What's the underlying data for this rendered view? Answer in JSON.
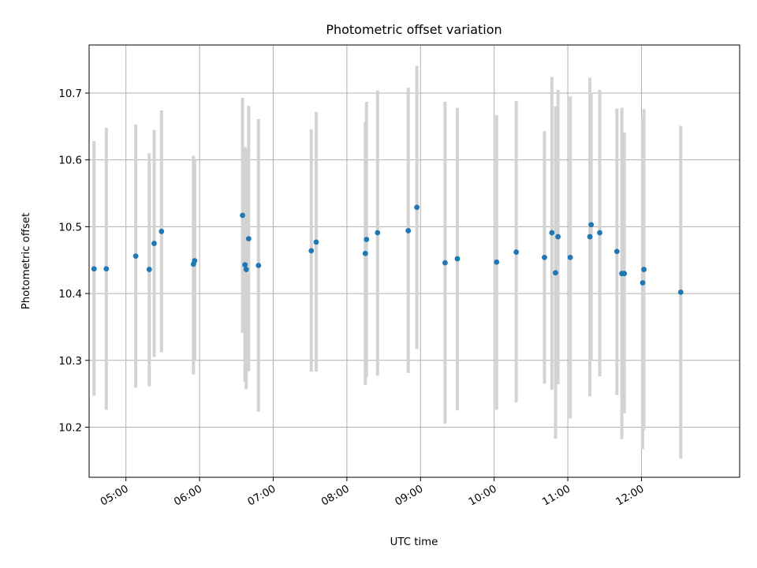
{
  "chart_data": {
    "type": "scatter",
    "title": "Photometric offset variation",
    "xlabel": "UTC time",
    "ylabel": "Photometric offset",
    "grid": true,
    "xlim": [
      "04:30",
      "13:20"
    ],
    "ylim": [
      10.125,
      10.772
    ],
    "x_ticks": [
      "05:00",
      "06:00",
      "07:00",
      "08:00",
      "09:00",
      "10:00",
      "11:00",
      "12:00"
    ],
    "y_ticks": [
      10.2,
      10.3,
      10.4,
      10.5,
      10.6,
      10.7
    ],
    "point_color": "#1f77b4",
    "errorbar_color": "#d3d3d3",
    "series": [
      {
        "points": [
          {
            "x": "04:34",
            "y": 10.437,
            "err_low": 10.247,
            "err_high": 10.628
          },
          {
            "x": "04:44",
            "y": 10.437,
            "err_low": 10.226,
            "err_high": 10.648
          },
          {
            "x": "05:08",
            "y": 10.456,
            "err_low": 10.259,
            "err_high": 10.653
          },
          {
            "x": "05:19",
            "y": 10.436,
            "err_low": 10.261,
            "err_high": 10.61
          },
          {
            "x": "05:23",
            "y": 10.475,
            "err_low": 10.305,
            "err_high": 10.645
          },
          {
            "x": "05:29",
            "y": 10.493,
            "err_low": 10.312,
            "err_high": 10.674
          },
          {
            "x": "05:55",
            "y": 10.444,
            "err_low": 10.279,
            "err_high": 10.606
          },
          {
            "x": "05:56",
            "y": 10.449,
            "err_low": 10.3,
            "err_high": 10.6
          },
          {
            "x": "06:35",
            "y": 10.517,
            "err_low": 10.341,
            "err_high": 10.693
          },
          {
            "x": "06:37",
            "y": 10.443,
            "err_low": 10.268,
            "err_high": 10.619
          },
          {
            "x": "06:38",
            "y": 10.436,
            "err_low": 10.257,
            "err_high": 10.616
          },
          {
            "x": "06:40",
            "y": 10.482,
            "err_low": 10.284,
            "err_high": 10.681
          },
          {
            "x": "06:48",
            "y": 10.442,
            "err_low": 10.223,
            "err_high": 10.661
          },
          {
            "x": "07:31",
            "y": 10.464,
            "err_low": 10.283,
            "err_high": 10.646
          },
          {
            "x": "07:35",
            "y": 10.477,
            "err_low": 10.283,
            "err_high": 10.672
          },
          {
            "x": "08:15",
            "y": 10.46,
            "err_low": 10.263,
            "err_high": 10.657
          },
          {
            "x": "08:16",
            "y": 10.481,
            "err_low": 10.275,
            "err_high": 10.687
          },
          {
            "x": "08:25",
            "y": 10.491,
            "err_low": 10.277,
            "err_high": 10.704
          },
          {
            "x": "08:50",
            "y": 10.494,
            "err_low": 10.281,
            "err_high": 10.708
          },
          {
            "x": "08:57",
            "y": 10.529,
            "err_low": 10.317,
            "err_high": 10.741
          },
          {
            "x": "09:20",
            "y": 10.446,
            "err_low": 10.205,
            "err_high": 10.687
          },
          {
            "x": "09:30",
            "y": 10.452,
            "err_low": 10.225,
            "err_high": 10.678
          },
          {
            "x": "10:02",
            "y": 10.447,
            "err_low": 10.226,
            "err_high": 10.667
          },
          {
            "x": "10:18",
            "y": 10.462,
            "err_low": 10.237,
            "err_high": 10.688
          },
          {
            "x": "10:41",
            "y": 10.454,
            "err_low": 10.265,
            "err_high": 10.643
          },
          {
            "x": "10:47",
            "y": 10.491,
            "err_low": 10.256,
            "err_high": 10.724
          },
          {
            "x": "10:50",
            "y": 10.431,
            "err_low": 10.183,
            "err_high": 10.68
          },
          {
            "x": "10:52",
            "y": 10.485,
            "err_low": 10.264,
            "err_high": 10.705
          },
          {
            "x": "11:02",
            "y": 10.454,
            "err_low": 10.213,
            "err_high": 10.695
          },
          {
            "x": "11:18",
            "y": 10.485,
            "err_low": 10.246,
            "err_high": 10.723
          },
          {
            "x": "11:19",
            "y": 10.503,
            "err_low": 10.3,
            "err_high": 10.7
          },
          {
            "x": "11:26",
            "y": 10.491,
            "err_low": 10.276,
            "err_high": 10.705
          },
          {
            "x": "11:40",
            "y": 10.463,
            "err_low": 10.248,
            "err_high": 10.677
          },
          {
            "x": "11:44",
            "y": 10.43,
            "err_low": 10.182,
            "err_high": 10.678
          },
          {
            "x": "11:46",
            "y": 10.43,
            "err_low": 10.221,
            "err_high": 10.641
          },
          {
            "x": "12:01",
            "y": 10.416,
            "err_low": 10.167,
            "err_high": 10.665
          },
          {
            "x": "12:02",
            "y": 10.436,
            "err_low": 10.196,
            "err_high": 10.676
          },
          {
            "x": "12:32",
            "y": 10.402,
            "err_low": 10.153,
            "err_high": 10.651
          }
        ]
      }
    ]
  }
}
